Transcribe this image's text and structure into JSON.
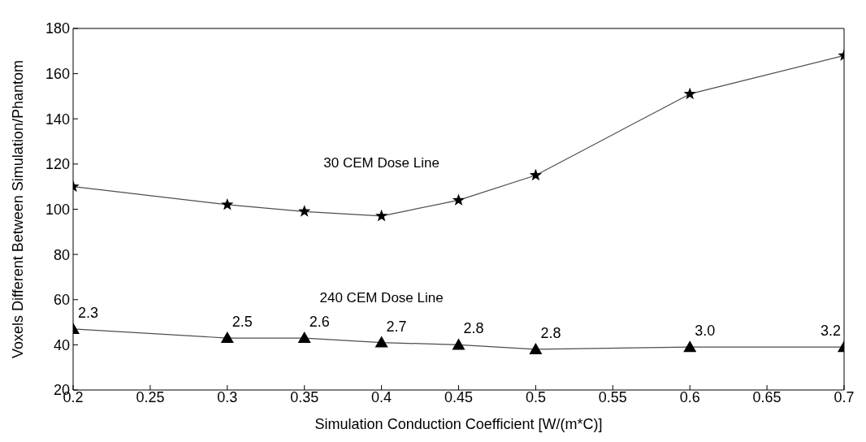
{
  "chart_data": {
    "type": "line",
    "xlabel": "Simulation Conduction Coefficient [W/(m*C)]",
    "ylabel": "Voxels Different Between Simulation/Phantom",
    "x": [
      0.2,
      0.3,
      0.35,
      0.4,
      0.45,
      0.5,
      0.6,
      0.7
    ],
    "series": [
      {
        "name": "30 CEM Dose Line",
        "color": "#000000",
        "marker": "star",
        "values": [
          110,
          102,
          99,
          97,
          104,
          115,
          151,
          168
        ]
      },
      {
        "name": "240 CEM Dose Line",
        "color": "#000000",
        "marker": "triangle",
        "values": [
          47,
          43,
          43,
          41,
          40,
          38,
          39,
          39
        ]
      }
    ],
    "annotations": [
      {
        "text": "2.3",
        "x": 0.2,
        "y": 47
      },
      {
        "text": "2.5",
        "x": 0.3,
        "y": 43
      },
      {
        "text": "2.6",
        "x": 0.35,
        "y": 43
      },
      {
        "text": "2.7",
        "x": 0.4,
        "y": 41
      },
      {
        "text": "2.8",
        "x": 0.45,
        "y": 40
      },
      {
        "text": "2.8",
        "x": 0.5,
        "y": 38
      },
      {
        "text": "3.0",
        "x": 0.6,
        "y": 39
      },
      {
        "text": "3.2",
        "x": 0.7,
        "y": 39
      }
    ],
    "xlim": [
      0.2,
      0.7
    ],
    "xticks": [
      0.2,
      0.25,
      0.3,
      0.35,
      0.4,
      0.45,
      0.5,
      0.55,
      0.6,
      0.65,
      0.7
    ],
    "ylim": [
      20,
      180
    ],
    "yticks": [
      20,
      40,
      60,
      80,
      100,
      120,
      140,
      160,
      180
    ],
    "grid": false,
    "line_style": "solid"
  }
}
